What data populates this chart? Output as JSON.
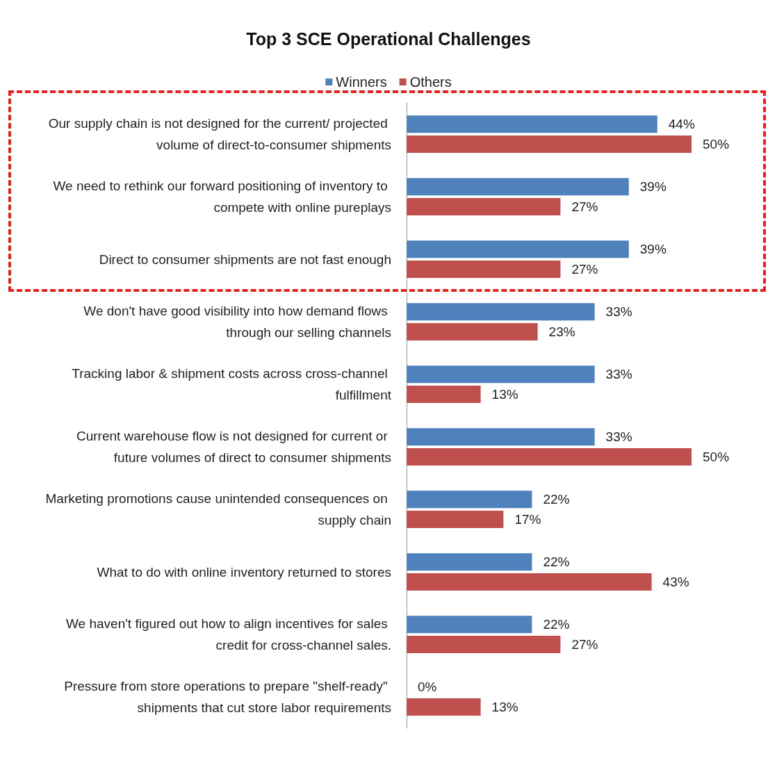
{
  "chart_data": {
    "type": "bar",
    "orientation": "horizontal",
    "title": "Top 3 SCE Operational Challenges",
    "legend": "top",
    "categories": [
      "Our supply chain is not designed for the current/ projected volume of direct-to-consumer shipments",
      "We need to rethink our forward positioning of inventory to compete with online pureplays",
      "Direct to consumer shipments are not fast enough",
      "We don't have good visibility into how demand flows through our selling channels",
      "Tracking labor & shipment costs across cross-channel fulfillment",
      "Current warehouse flow is not designed for current or future volumes of direct to consumer shipments",
      "Marketing promotions cause unintended consequences on supply chain",
      "What to do with online inventory returned to stores",
      "We haven't figured out how to align incentives for sales credit for cross-channel sales.",
      "Pressure from store operations to prepare \"shelf-ready\" shipments that cut store labor requirements"
    ],
    "series": [
      {
        "name": "Winners",
        "color": "#4f81bd",
        "values": [
          44,
          39,
          39,
          33,
          33,
          33,
          22,
          22,
          22,
          0
        ],
        "value_labels": [
          "44%",
          "39%",
          "39%",
          "33%",
          "33%",
          "33%",
          "22%",
          "22%",
          "22%",
          "0%"
        ]
      },
      {
        "name": "Others",
        "color": "#c0504d",
        "values": [
          50,
          27,
          27,
          23,
          13,
          50,
          17,
          43,
          27,
          13
        ],
        "value_labels": [
          "50%",
          "27%",
          "27%",
          "23%",
          "13%",
          "50%",
          "17%",
          "43%",
          "27%",
          "13%"
        ]
      }
    ]
  }
}
